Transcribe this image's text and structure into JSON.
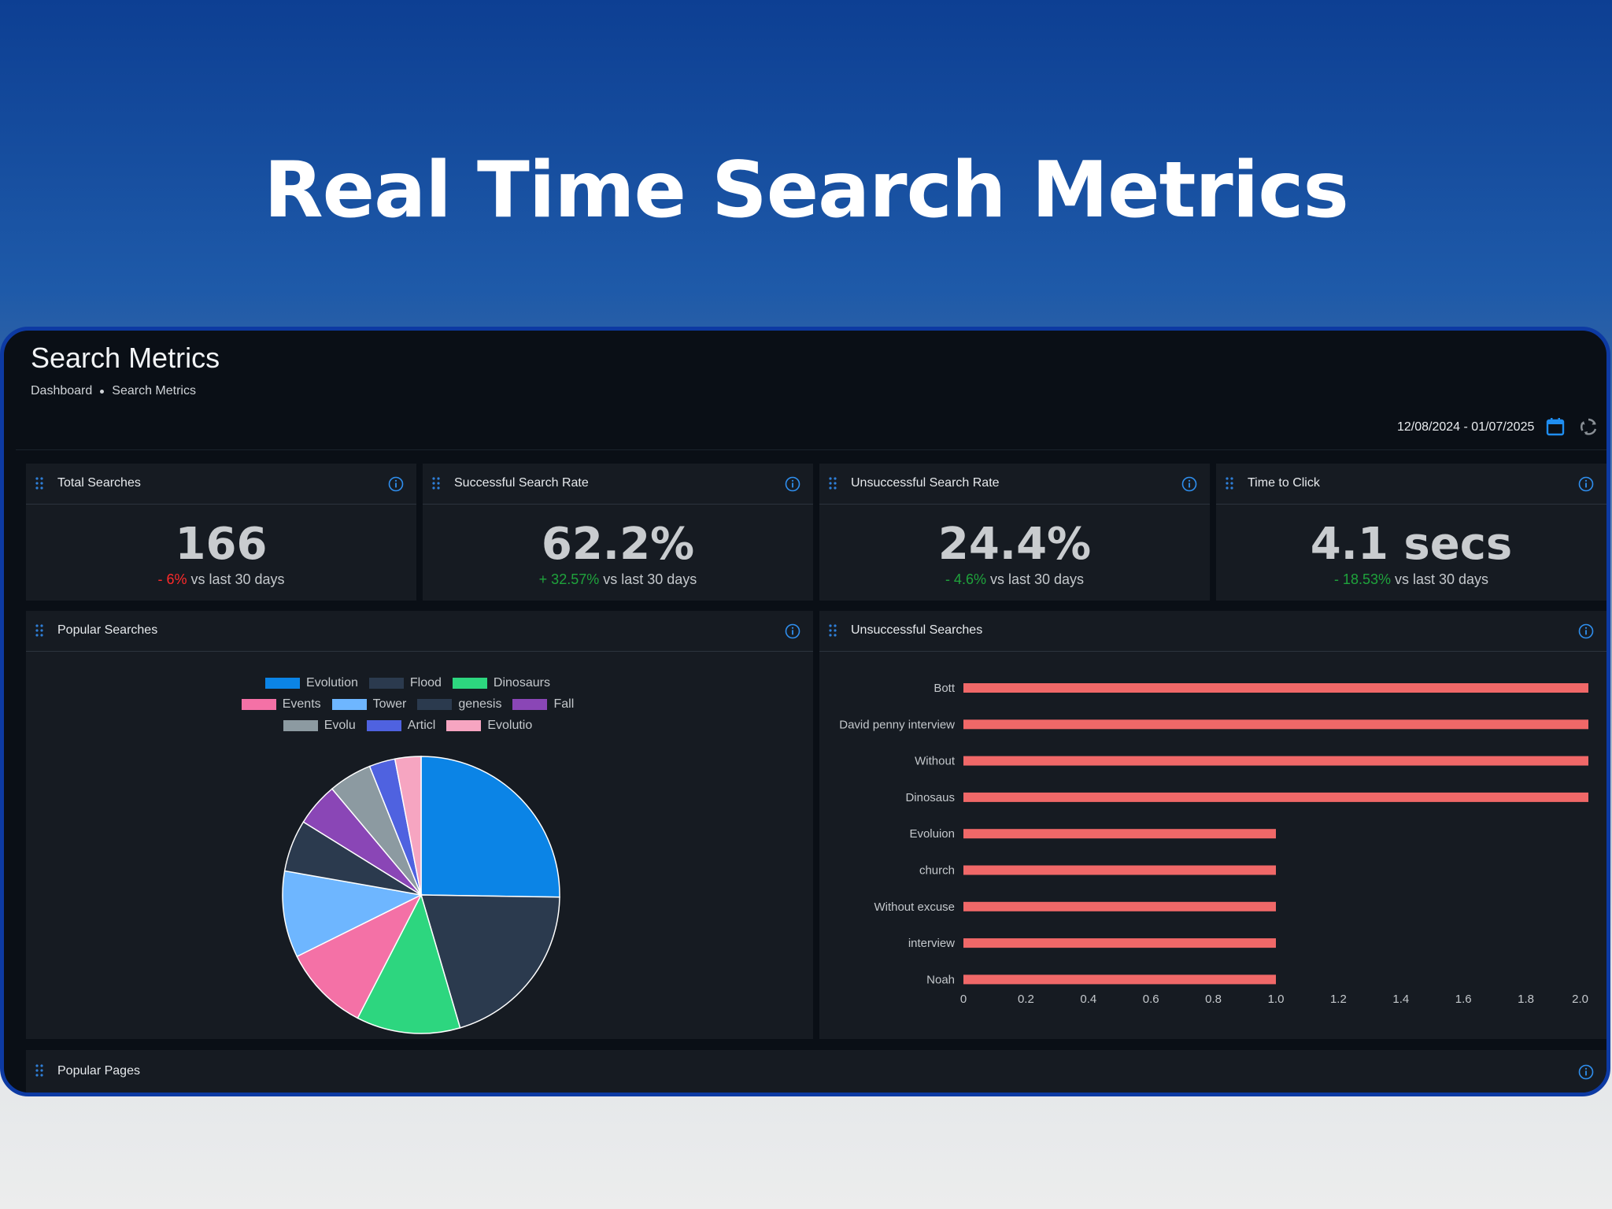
{
  "headline": "Real Time Search Metrics",
  "header": {
    "title": "Search Metrics",
    "breadcrumb": [
      "Dashboard",
      "Search Metrics"
    ],
    "date_range": "12/08/2024 - 01/07/2025",
    "calendar_icon": "calendar-icon",
    "refresh_icon": "refresh-icon"
  },
  "colors": {
    "accent": "#1f8ef1",
    "negative": "#ff2a2a",
    "positive": "#1fa33c",
    "bar": "#f06868",
    "frame": "#0d3aa3"
  },
  "stats": [
    {
      "title": "Total Searches",
      "value": "166",
      "delta": "- 6%",
      "delta_dir": "negative",
      "suffix": "vs last 30 days"
    },
    {
      "title": "Successful Search Rate",
      "value": "62.2%",
      "delta": "+ 32.57%",
      "delta_dir": "positive",
      "suffix": "vs last 30 days"
    },
    {
      "title": "Unsuccessful Search Rate",
      "value": "24.4%",
      "delta": "- 4.6%",
      "delta_dir": "positive",
      "suffix": "vs last 30 days"
    },
    {
      "title": "Time to Click",
      "value": "4.1 secs",
      "delta": "- 18.53%",
      "delta_dir": "positive",
      "suffix": "vs last 30 days"
    }
  ],
  "popular_searches": {
    "title": "Popular Searches"
  },
  "unsuccessful_searches": {
    "title": "Unsuccessful Searches"
  },
  "popular_pages": {
    "title": "Popular Pages"
  },
  "chart_data": [
    {
      "type": "pie",
      "title": "",
      "labels": [
        "Evolution",
        "Flood",
        "Dinosaurs",
        "Events",
        "Tower",
        "genesis",
        "Fall",
        "Evolu",
        "Articl",
        "Evolutio"
      ],
      "values": [
        25,
        20,
        12,
        10,
        10,
        6,
        5,
        5,
        3,
        3
      ],
      "colors": [
        "#0b84e6",
        "#2b3a4e",
        "#2dd67f",
        "#f471a6",
        "#6eb6ff",
        "#2b3a4e",
        "#8a46b6",
        "#8c9aa1",
        "#4f62e0",
        "#f6a5c1"
      ],
      "legend_rows": [
        [
          "Evolution",
          "Flood",
          "Dinosaurs"
        ],
        [
          "Events",
          "Tower",
          "genesis",
          "Fall"
        ],
        [
          "Evolu",
          "Articl",
          "Evolutio"
        ]
      ],
      "legend": "top"
    },
    {
      "type": "bar",
      "orientation": "horizontal",
      "title": "",
      "categories": [
        "Bott",
        "David penny interview",
        "Without",
        "Dinosaus",
        "Evoluion",
        "church",
        "Without excuse",
        "interview",
        "Noah"
      ],
      "values": [
        2,
        2,
        2,
        2,
        1,
        1,
        1,
        1,
        1
      ],
      "xlim": [
        0,
        2
      ],
      "xticks": [
        "0",
        "0.2",
        "0.4",
        "0.6",
        "0.8",
        "1.0",
        "1.2",
        "1.4",
        "1.6",
        "1.8",
        "2.0"
      ],
      "color": "#f06868",
      "grid": false
    }
  ]
}
